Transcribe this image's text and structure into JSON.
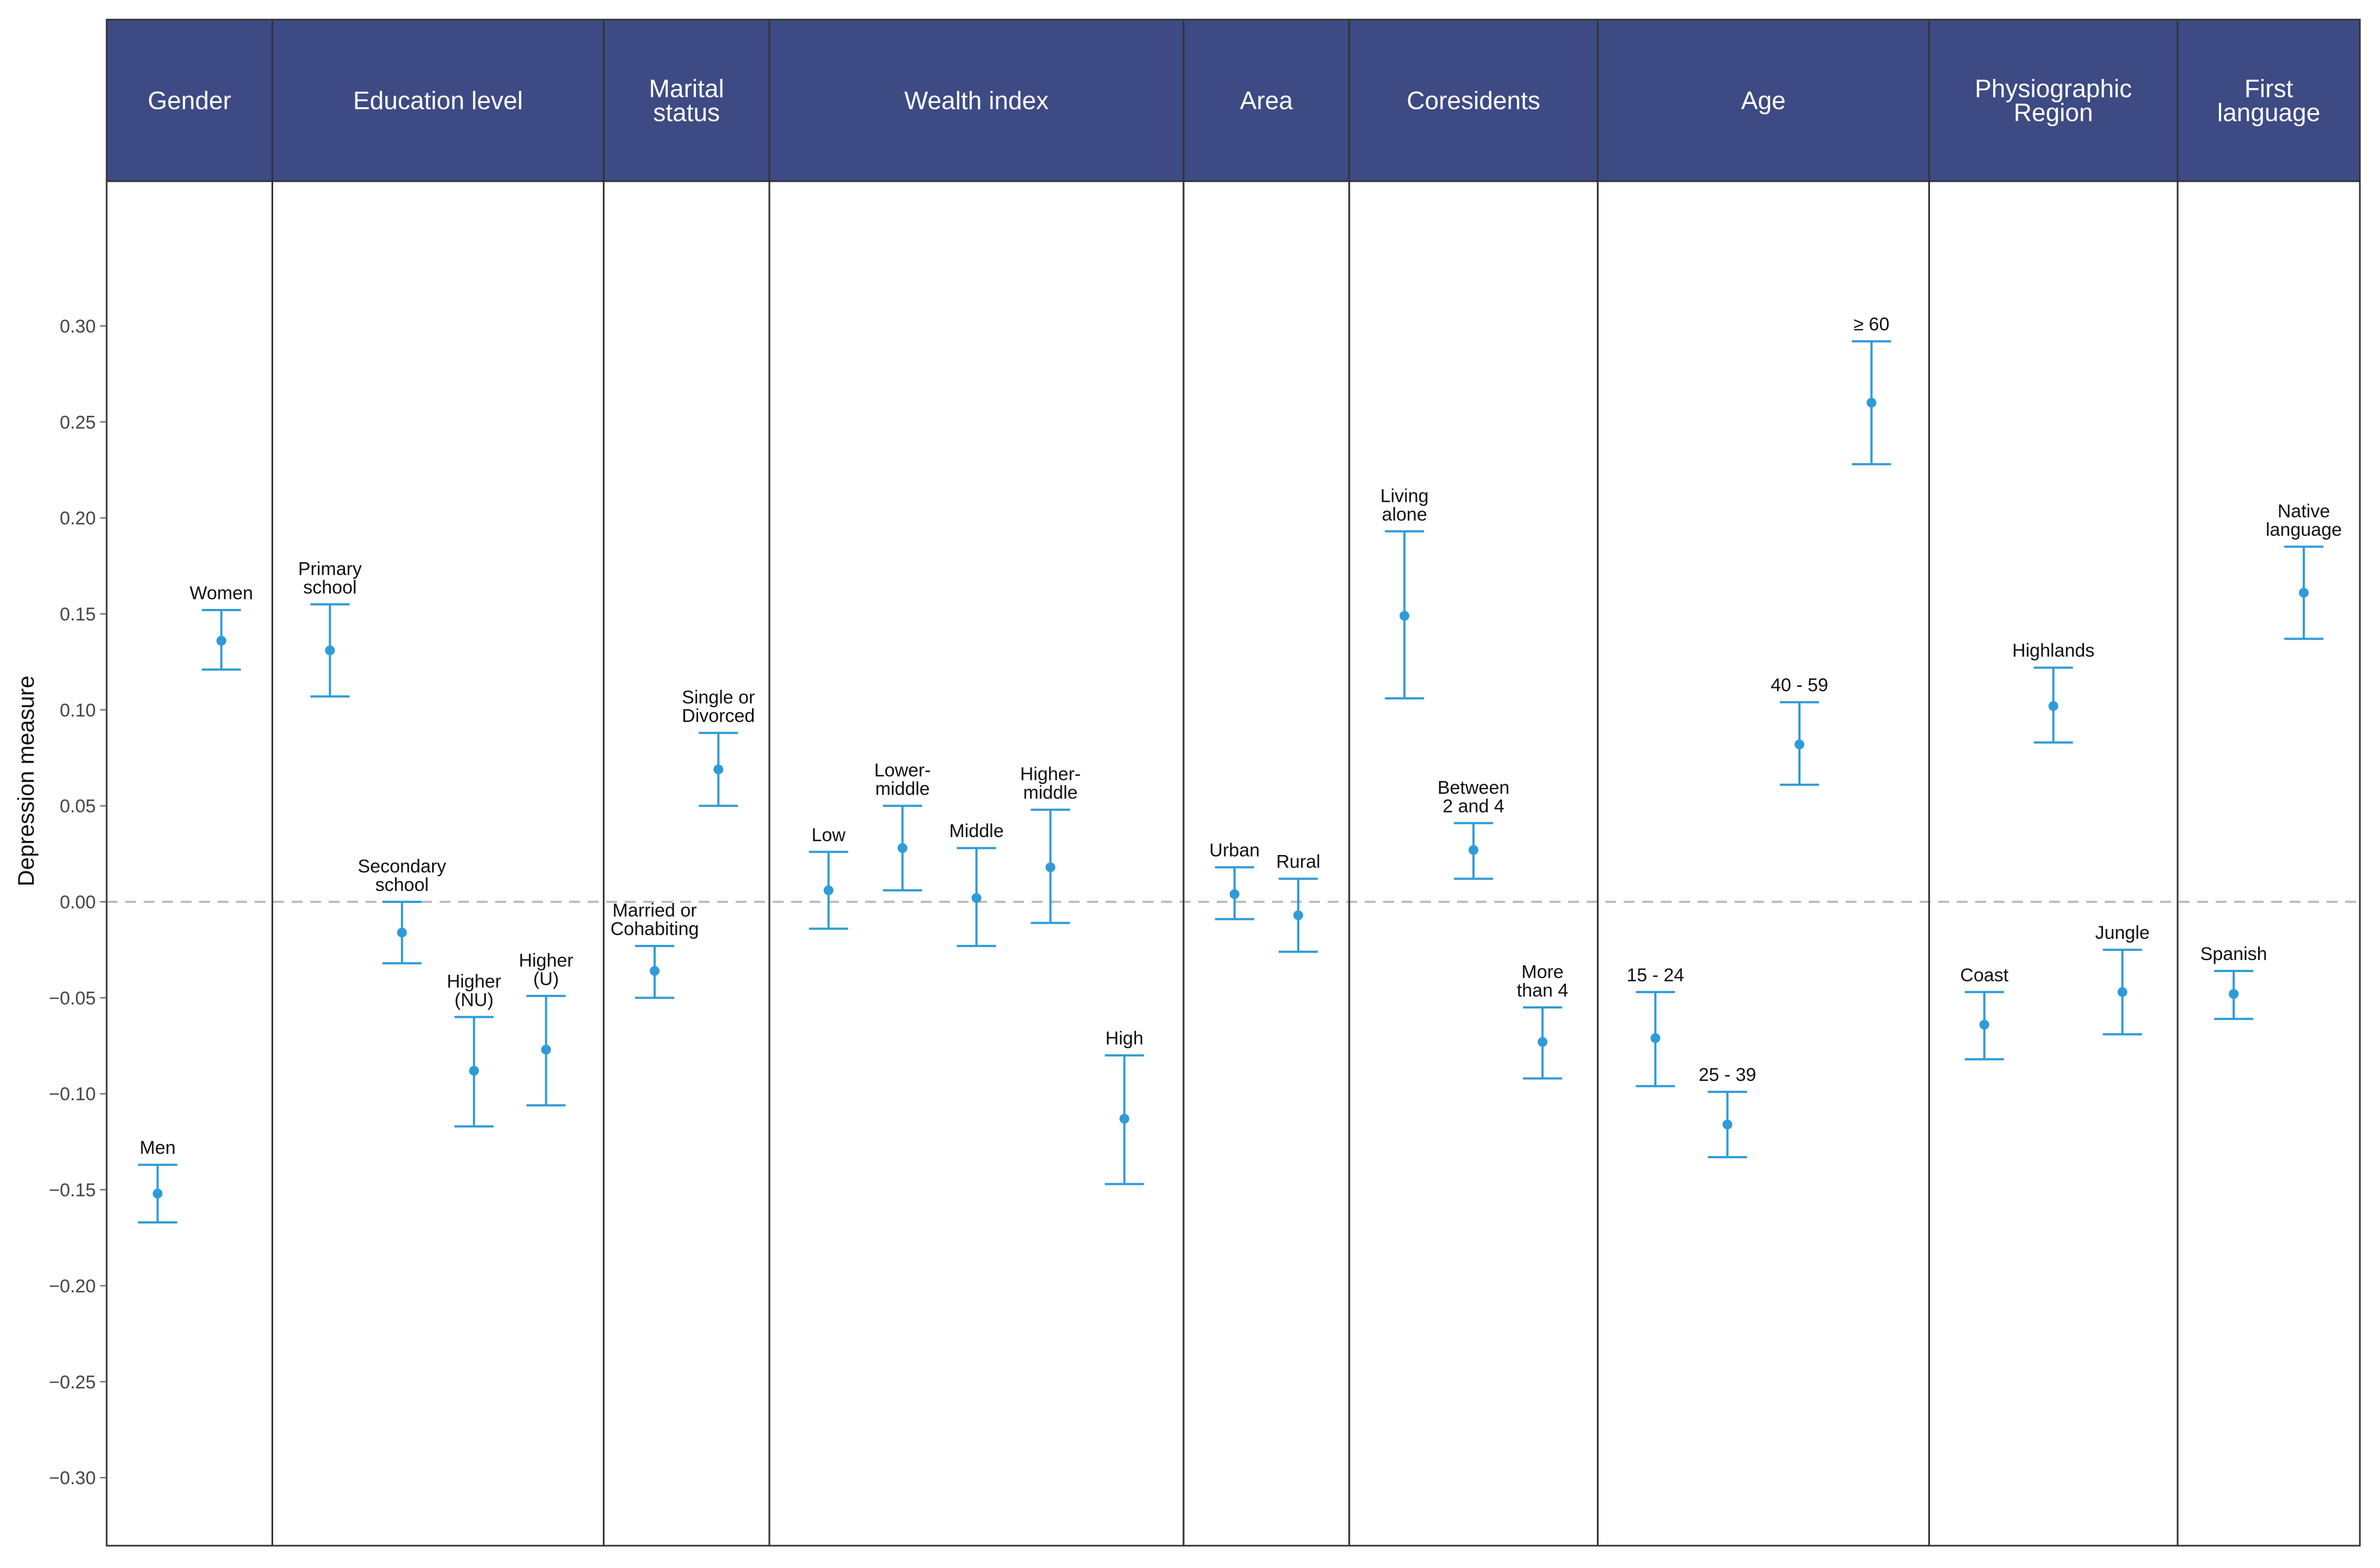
{
  "chart_data": {
    "type": "scatter",
    "ylabel": "Depression measure",
    "ylim": [
      -0.33,
      0.375
    ],
    "yticks": [
      -0.3,
      -0.25,
      -0.2,
      -0.15,
      -0.1,
      -0.05,
      0.0,
      0.05,
      0.1,
      0.15,
      0.2,
      0.25,
      0.3
    ],
    "ytick_labels": [
      "−0.30",
      "−0.25",
      "−0.20",
      "−0.15",
      "−0.10",
      "−0.05",
      "0.00",
      "0.05",
      "0.10",
      "0.15",
      "0.20",
      "0.25",
      "0.30"
    ],
    "reference_line": 0.0,
    "grid": false,
    "colors": {
      "point": "#2f9bd8",
      "strip": "#3d4a84",
      "strip_text": "#ffffff",
      "panel_border": "#333333",
      "reference_line": "#bdbdbd"
    },
    "panels": [
      {
        "title": [
          "Gender"
        ],
        "points": [
          {
            "label": [
              "Men"
            ],
            "y": -0.152,
            "low": -0.167,
            "high": -0.137
          },
          {
            "label": [
              "Women"
            ],
            "y": 0.136,
            "low": 0.121,
            "high": 0.152
          }
        ]
      },
      {
        "title": [
          "Education level"
        ],
        "points": [
          {
            "label": [
              "Primary",
              "school"
            ],
            "y": 0.131,
            "low": 0.107,
            "high": 0.155
          },
          {
            "label": [
              "Secondary",
              "school"
            ],
            "y": -0.016,
            "low": -0.032,
            "high": 0.0
          },
          {
            "label": [
              "Higher",
              "(NU)"
            ],
            "y": -0.088,
            "low": -0.117,
            "high": -0.06
          },
          {
            "label": [
              "Higher",
              "(U)"
            ],
            "y": -0.077,
            "low": -0.106,
            "high": -0.049
          }
        ]
      },
      {
        "title": [
          "Marital",
          "status"
        ],
        "points": [
          {
            "label": [
              "Married or",
              "Cohabiting"
            ],
            "y": -0.036,
            "low": -0.05,
            "high": -0.023
          },
          {
            "label": [
              "Single or",
              "Divorced"
            ],
            "y": 0.069,
            "low": 0.05,
            "high": 0.088
          }
        ]
      },
      {
        "title": [
          "Wealth index"
        ],
        "points": [
          {
            "label": [
              "Low"
            ],
            "y": 0.006,
            "low": -0.014,
            "high": 0.026
          },
          {
            "label": [
              "Lower-",
              "middle"
            ],
            "y": 0.028,
            "low": 0.006,
            "high": 0.05
          },
          {
            "label": [
              "Middle"
            ],
            "y": 0.002,
            "low": -0.023,
            "high": 0.028
          },
          {
            "label": [
              "Higher-",
              "middle"
            ],
            "y": 0.018,
            "low": -0.011,
            "high": 0.048
          },
          {
            "label": [
              "High"
            ],
            "y": -0.113,
            "low": -0.147,
            "high": -0.08
          }
        ]
      },
      {
        "title": [
          "Area"
        ],
        "points": [
          {
            "label": [
              "Urban"
            ],
            "y": 0.004,
            "low": -0.009,
            "high": 0.018
          },
          {
            "label": [
              "Rural"
            ],
            "y": -0.007,
            "low": -0.026,
            "high": 0.012
          }
        ]
      },
      {
        "title": [
          "Coresidents"
        ],
        "points": [
          {
            "label": [
              "Living",
              "alone"
            ],
            "y": 0.149,
            "low": 0.106,
            "high": 0.193
          },
          {
            "label": [
              "Between",
              "2 and 4"
            ],
            "y": 0.027,
            "low": 0.012,
            "high": 0.041
          },
          {
            "label": [
              "More",
              "than 4"
            ],
            "y": -0.073,
            "low": -0.092,
            "high": -0.055
          }
        ]
      },
      {
        "title": [
          "Age"
        ],
        "points": [
          {
            "label": [
              "15 - 24"
            ],
            "y": -0.071,
            "low": -0.096,
            "high": -0.047
          },
          {
            "label": [
              "25 - 39"
            ],
            "y": -0.116,
            "low": -0.133,
            "high": -0.099
          },
          {
            "label": [
              "40 - 59"
            ],
            "y": 0.082,
            "low": 0.061,
            "high": 0.104
          },
          {
            "label": [
              "≥ 60"
            ],
            "y": 0.26,
            "low": 0.228,
            "high": 0.292
          }
        ]
      },
      {
        "title": [
          "Physiographic",
          "Region"
        ],
        "points": [
          {
            "label": [
              "Coast"
            ],
            "y": -0.064,
            "low": -0.082,
            "high": -0.047
          },
          {
            "label": [
              "Highlands"
            ],
            "y": 0.102,
            "low": 0.083,
            "high": 0.122
          },
          {
            "label": [
              "Jungle"
            ],
            "y": -0.047,
            "low": -0.069,
            "high": -0.025
          }
        ]
      },
      {
        "title": [
          "First",
          "language"
        ],
        "points": [
          {
            "label": [
              "Spanish"
            ],
            "y": -0.048,
            "low": -0.061,
            "high": -0.036
          },
          {
            "label": [
              "Native",
              "language"
            ],
            "y": 0.161,
            "low": 0.137,
            "high": 0.185
          }
        ]
      }
    ]
  }
}
